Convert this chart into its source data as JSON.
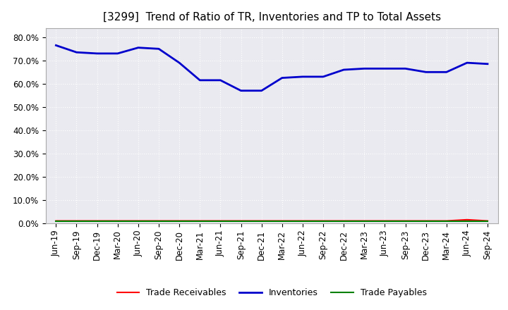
{
  "title": "[3299]  Trend of Ratio of TR, Inventories and TP to Total Assets",
  "ylim": [
    0.0,
    0.84
  ],
  "yticks": [
    0.0,
    0.1,
    0.2,
    0.3,
    0.4,
    0.5,
    0.6,
    0.7,
    0.8
  ],
  "ytick_labels": [
    "0.0%",
    "10.0%",
    "20.0%",
    "30.0%",
    "40.0%",
    "50.0%",
    "60.0%",
    "70.0%",
    "80.0%"
  ],
  "x_labels": [
    "Jun-19",
    "Sep-19",
    "Dec-19",
    "Mar-20",
    "Jun-20",
    "Sep-20",
    "Dec-20",
    "Mar-21",
    "Jun-21",
    "Sep-21",
    "Dec-21",
    "Mar-22",
    "Jun-22",
    "Sep-22",
    "Dec-22",
    "Mar-23",
    "Jun-23",
    "Sep-23",
    "Dec-23",
    "Mar-24",
    "Jun-24",
    "Sep-24"
  ],
  "trade_receivables": [
    0.01,
    0.01,
    0.01,
    0.01,
    0.01,
    0.01,
    0.01,
    0.01,
    0.01,
    0.01,
    0.01,
    0.01,
    0.01,
    0.01,
    0.01,
    0.01,
    0.01,
    0.01,
    0.01,
    0.01,
    0.015,
    0.01
  ],
  "inventories": [
    0.765,
    0.735,
    0.73,
    0.73,
    0.755,
    0.75,
    0.69,
    0.615,
    0.615,
    0.57,
    0.57,
    0.625,
    0.63,
    0.63,
    0.66,
    0.665,
    0.665,
    0.665,
    0.65,
    0.65,
    0.69,
    0.685
  ],
  "trade_payables": [
    0.007,
    0.007,
    0.007,
    0.007,
    0.007,
    0.007,
    0.007,
    0.007,
    0.007,
    0.007,
    0.007,
    0.007,
    0.007,
    0.007,
    0.007,
    0.007,
    0.007,
    0.007,
    0.007,
    0.007,
    0.007,
    0.007
  ],
  "tr_color": "#ff0000",
  "inv_color": "#0000cc",
  "tp_color": "#008000",
  "plot_bg_color": "#eaeaf0",
  "background_color": "#ffffff",
  "grid_color": "#ffffff",
  "title_fontsize": 11,
  "legend_fontsize": 9,
  "tick_fontsize": 8.5
}
